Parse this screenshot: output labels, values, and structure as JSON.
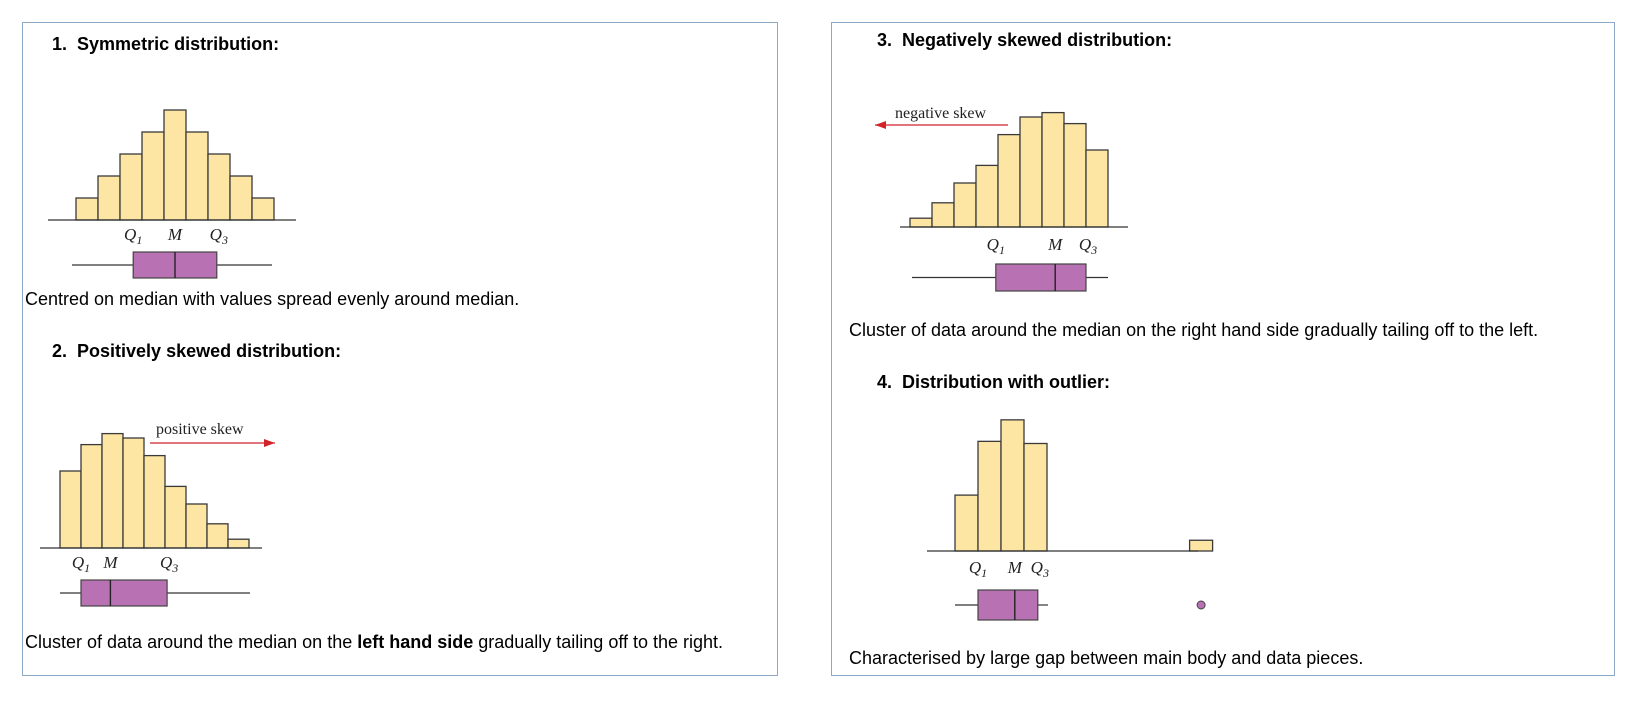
{
  "colors": {
    "bar_fill": "#fde5a4",
    "bar_stroke": "#3a3a3a",
    "box_fill": "#b872b4",
    "arrow": "#d2232a",
    "panel_border": "#8ea9c8"
  },
  "sections": {
    "s1": {
      "heading_num": "1.",
      "heading_title": "Symmetric distribution:",
      "description": "Centred on median with values spread evenly around median."
    },
    "s2": {
      "heading_num": "2.",
      "heading_title": "Positively skewed distribution:",
      "desc_before": "Cluster of data around the median on the ",
      "desc_bold": "left hand side",
      "desc_after": " gradually tailing off to the right."
    },
    "s3": {
      "heading_num": "3.",
      "heading_title": "Negatively skewed distribution:",
      "description": "Cluster of data around the median on the right hand side gradually tailing off to the left."
    },
    "s4": {
      "heading_num": "4.",
      "heading_title": "Distribution with outlier:",
      "description": "Characterised by large gap between main body and data pieces."
    }
  },
  "chart_data": [
    {
      "id": "symmetric",
      "type": "bar",
      "title": "Symmetric distribution",
      "values": [
        1,
        2,
        3,
        4,
        5,
        4,
        3,
        2,
        1
      ],
      "box": {
        "whisker_low": 0.0,
        "q1": 2.6,
        "median": 4.5,
        "q3": 6.4,
        "whisker_high": 9.0
      },
      "tick_labels": {
        "q1": "Q",
        "q1_sub": "1",
        "median": "M",
        "q3": "Q",
        "q3_sub": "3"
      }
    },
    {
      "id": "positive",
      "type": "bar",
      "title": "Positively skewed distribution",
      "values": [
        3.5,
        4.7,
        5.2,
        5.0,
        4.2,
        2.8,
        2.0,
        1.1,
        0.4
      ],
      "box": {
        "whisker_low": 0.0,
        "q1": 1.0,
        "median": 2.4,
        "q3": 5.1,
        "whisker_high": 9.0
      },
      "annotation": "positive skew",
      "arrow_direction": "right",
      "tick_labels": {
        "q1": "Q",
        "q1_sub": "1",
        "median": "M",
        "q3": "Q",
        "q3_sub": "3"
      }
    },
    {
      "id": "negative",
      "type": "bar",
      "title": "Negatively skewed distribution",
      "values": [
        0.4,
        1.1,
        2.0,
        2.8,
        4.2,
        5.0,
        5.2,
        4.7,
        3.5
      ],
      "box": {
        "whisker_low": 0.0,
        "q1": 3.9,
        "median": 6.6,
        "q3": 8.0,
        "whisker_high": 9.0
      },
      "annotation": "negative skew",
      "arrow_direction": "left",
      "tick_labels": {
        "q1": "Q",
        "q1_sub": "1",
        "median": "M",
        "q3": "Q",
        "q3_sub": "3"
      }
    },
    {
      "id": "outlier",
      "type": "bar",
      "title": "Distribution with outlier",
      "values": [
        2.6,
        5.1,
        6.1,
        5.0
      ],
      "outlier_value": 0.5,
      "outlier_position": 10.2,
      "box": {
        "whisker_low": 0.0,
        "q1": 1.0,
        "median": 2.6,
        "q3": 3.6,
        "whisker_high": 4.0
      },
      "tick_labels": {
        "q1": "Q",
        "q1_sub": "1",
        "median": "M",
        "q3": "Q",
        "q3_sub": "3"
      }
    }
  ]
}
